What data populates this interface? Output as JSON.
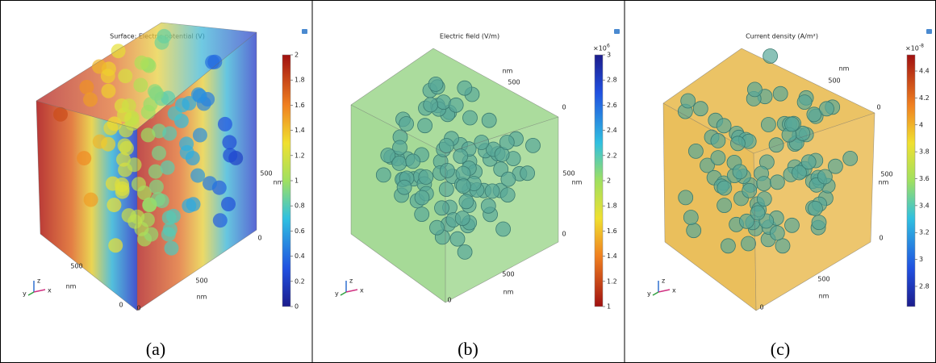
{
  "panels": [
    {
      "title": "Surface: Electric potential (V)",
      "colorbar": {
        "clim": [
          0,
          2
        ],
        "ticks": [
          0,
          0.2,
          0.4,
          0.6,
          0.8,
          1,
          1.2,
          1.4,
          1.6,
          1.8,
          2
        ]
      },
      "axis_labels": [
        "500",
        "nm",
        "0",
        "500",
        "nm",
        "0",
        "0",
        "500",
        "nm"
      ],
      "triad": [
        "z",
        "y",
        "x"
      ],
      "caption": "(a)"
    },
    {
      "title": "Electric field (V/m)",
      "colorbar": {
        "clim": [
          1,
          3
        ],
        "ticks": [
          1,
          1.2,
          1.4,
          1.6,
          1.8,
          2,
          2.2,
          2.4,
          2.6,
          2.8,
          3
        ],
        "multiplier": {
          "base": "×10",
          "exponent": "6"
        }
      },
      "axis_labels": [
        "nm",
        "500",
        "0",
        "500",
        "nm",
        "0",
        "500",
        "nm",
        "0"
      ],
      "triad": [
        "z",
        "y",
        "x"
      ],
      "caption": "(b)"
    },
    {
      "title": "Current density (A/m²)",
      "colorbar": {
        "clim": [
          2.65,
          4.52
        ],
        "ticks": [
          2.8,
          3,
          3.2,
          3.4,
          3.6,
          3.8,
          4,
          4.2,
          4.4
        ],
        "multiplier": {
          "base": "×10",
          "exponent": "-8"
        }
      },
      "axis_labels": [
        "nm",
        "500",
        "0",
        "500",
        "nm",
        "0",
        "500",
        "nm",
        "0"
      ],
      "triad": [
        "z",
        "y",
        "x"
      ],
      "caption": "(c)"
    }
  ]
}
